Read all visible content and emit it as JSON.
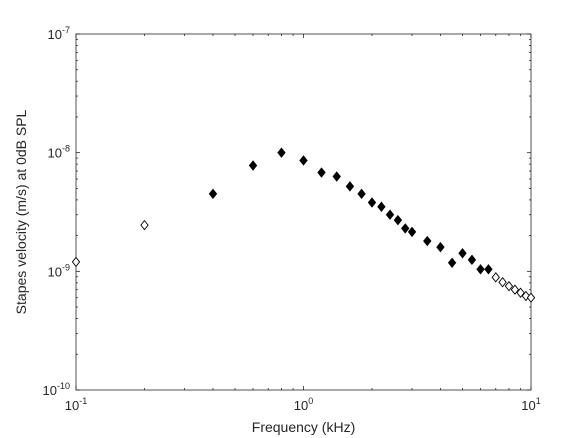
{
  "chart_data": {
    "type": "scatter",
    "title": "",
    "xlabel": "Frequency (kHz)",
    "ylabel": "Stapes velocity (m/s) at 0dB SPL",
    "x_scale": "log",
    "y_scale": "log",
    "xlim": [
      0.1,
      10
    ],
    "ylim": [
      1e-10,
      1e-07
    ],
    "grid": false,
    "x_ticks": [
      {
        "value": 0.1,
        "base": "10",
        "exp": "-1"
      },
      {
        "value": 1,
        "base": "10",
        "exp": "0"
      },
      {
        "value": 10,
        "base": "10",
        "exp": "1"
      }
    ],
    "y_ticks": [
      {
        "value": 1e-10,
        "base": "10",
        "exp": "-10"
      },
      {
        "value": 1e-09,
        "base": "10",
        "exp": "-9"
      },
      {
        "value": 1e-08,
        "base": "10",
        "exp": "-8"
      },
      {
        "value": 1e-07,
        "base": "10",
        "exp": "-7"
      }
    ],
    "series": [
      {
        "marker": "filled-diamond",
        "color": "#000000",
        "points": [
          [
            0.4,
            4.5e-09
          ],
          [
            0.6,
            7.8e-09
          ],
          [
            0.8,
            1e-08
          ],
          [
            1.0,
            8.6e-09
          ],
          [
            1.2,
            6.8e-09
          ],
          [
            1.4,
            6.3e-09
          ],
          [
            1.6,
            5.2e-09
          ],
          [
            1.8,
            4.5e-09
          ],
          [
            2.0,
            3.8e-09
          ],
          [
            2.2,
            3.5e-09
          ],
          [
            2.4,
            3e-09
          ],
          [
            2.6,
            2.7e-09
          ],
          [
            2.8,
            2.3e-09
          ],
          [
            3.0,
            2.15e-09
          ],
          [
            3.5,
            1.8e-09
          ],
          [
            4.0,
            1.6e-09
          ],
          [
            4.5,
            1.18e-09
          ],
          [
            5.0,
            1.42e-09
          ],
          [
            5.5,
            1.25e-09
          ],
          [
            6.0,
            1.04e-09
          ],
          [
            6.5,
            1.04e-09
          ]
        ]
      },
      {
        "marker": "open-diamond",
        "color": "#000000",
        "points": [
          [
            0.1,
            1.2e-09
          ],
          [
            0.2,
            2.45e-09
          ],
          [
            7.0,
            8.9e-10
          ],
          [
            7.5,
            8.1e-10
          ],
          [
            8.0,
            7.5e-10
          ],
          [
            8.5,
            7e-10
          ],
          [
            9.0,
            6.6e-10
          ],
          [
            9.5,
            6.2e-10
          ],
          [
            10.0,
            6e-10
          ]
        ]
      }
    ]
  }
}
